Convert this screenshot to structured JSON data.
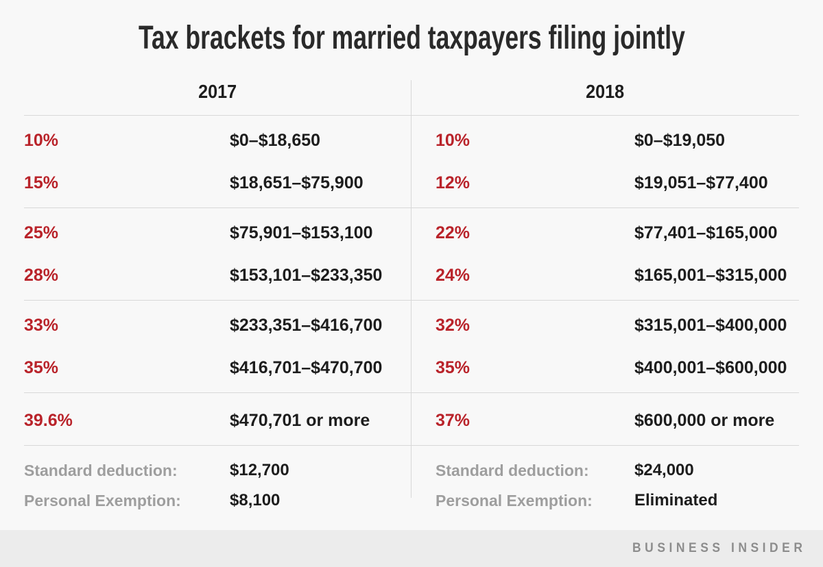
{
  "title": "Tax brackets for married taxpayers filing jointly",
  "columns": [
    {
      "year": "2017",
      "groups": [
        {
          "rows": [
            {
              "rate": "10%",
              "range": "$0–$18,650"
            },
            {
              "rate": "15%",
              "range": "$18,651–$75,900"
            }
          ]
        },
        {
          "rows": [
            {
              "rate": "25%",
              "range": "$75,901–$153,100"
            },
            {
              "rate": "28%",
              "range": "$153,101–$233,350"
            }
          ]
        },
        {
          "rows": [
            {
              "rate": "33%",
              "range": "$233,351–$416,700"
            },
            {
              "rate": "35%",
              "range": "$416,701–$470,700"
            }
          ]
        },
        {
          "rows": [
            {
              "rate": "39.6%",
              "range": "$470,701 or more"
            }
          ]
        }
      ],
      "standard_deduction_label": "Standard deduction:",
      "standard_deduction_value": "$12,700",
      "personal_exemption_label": "Personal Exemption:",
      "personal_exemption_value": "$8,100"
    },
    {
      "year": "2018",
      "groups": [
        {
          "rows": [
            {
              "rate": "10%",
              "range": "$0–$19,050"
            },
            {
              "rate": "12%",
              "range": "$19,051–$77,400"
            }
          ]
        },
        {
          "rows": [
            {
              "rate": "22%",
              "range": "$77,401–$165,000"
            },
            {
              "rate": "24%",
              "range": "$165,001–$315,000"
            }
          ]
        },
        {
          "rows": [
            {
              "rate": "32%",
              "range": "$315,001–$400,000"
            },
            {
              "rate": "35%",
              "range": "$400,001–$600,000"
            }
          ]
        },
        {
          "rows": [
            {
              "rate": "37%",
              "range": "$600,000 or more"
            }
          ]
        }
      ],
      "standard_deduction_label": "Standard deduction:",
      "standard_deduction_value": "$24,000",
      "personal_exemption_label": "Personal Exemption:",
      "personal_exemption_value": "Eliminated"
    }
  ],
  "footer": {
    "brand": "BUSINESS INSIDER"
  },
  "colors": {
    "background": "#f8f8f8",
    "footer_background": "#ececec",
    "rate_red": "#b9232a",
    "text_dark": "#1d1d1d",
    "label_gray": "#9e9e9e",
    "line_gray": "#d8d8d8",
    "brand_gray": "#8d8d8d"
  },
  "chart_data": {
    "type": "table",
    "title": "Tax brackets for married taxpayers filing jointly",
    "columns": [
      "2017",
      "2018"
    ],
    "rows_2017": [
      [
        "10%",
        "$0–$18,650"
      ],
      [
        "15%",
        "$18,651–$75,900"
      ],
      [
        "25%",
        "$75,901–$153,100"
      ],
      [
        "28%",
        "$153,101–$233,350"
      ],
      [
        "33%",
        "$233,351–$416,700"
      ],
      [
        "35%",
        "$416,701–$470,700"
      ],
      [
        "39.6%",
        "$470,701 or more"
      ],
      [
        "Standard deduction:",
        "$12,700"
      ],
      [
        "Personal Exemption:",
        "$8,100"
      ]
    ],
    "rows_2018": [
      [
        "10%",
        "$0–$19,050"
      ],
      [
        "12%",
        "$19,051–$77,400"
      ],
      [
        "22%",
        "$77,401–$165,000"
      ],
      [
        "24%",
        "$165,001–$315,000"
      ],
      [
        "32%",
        "$315,001–$400,000"
      ],
      [
        "35%",
        "$400,001–$600,000"
      ],
      [
        "37%",
        "$600,000 or more"
      ],
      [
        "Standard deduction:",
        "$24,000"
      ],
      [
        "Personal Exemption:",
        "Eliminated"
      ]
    ]
  }
}
